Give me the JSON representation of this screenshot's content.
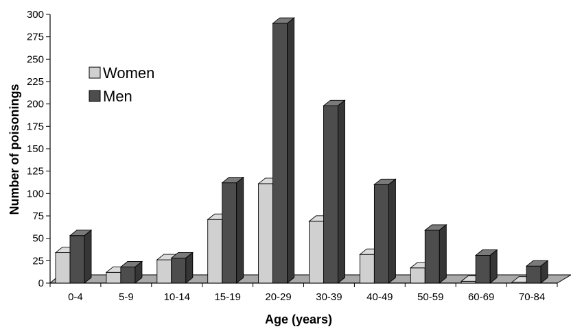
{
  "chart_data": {
    "type": "bar",
    "style": "3d-clustered-column",
    "title": "",
    "xlabel": "Age (years)",
    "ylabel": "Number of poisonings",
    "ylim": [
      0,
      300
    ],
    "yticks": [
      "0",
      "25",
      "50",
      "75",
      "100",
      "125",
      "150",
      "175",
      "200",
      "225",
      "250",
      "275",
      "300"
    ],
    "categories": [
      "0-4",
      "5-9",
      "10-14",
      "15-19",
      "20-29",
      "30-39",
      "40-49",
      "50-59",
      "60-69",
      "70-84"
    ],
    "series": [
      {
        "name": "Women",
        "color": "#d0d0d0",
        "values": [
          34,
          12,
          26,
          71,
          111,
          69,
          32,
          17,
          2,
          1
        ]
      },
      {
        "name": "Men",
        "color": "#4d4d4d",
        "values": [
          53,
          18,
          28,
          112,
          290,
          198,
          110,
          59,
          31,
          19
        ]
      }
    ],
    "legend_position": "top-left",
    "grid": false
  }
}
